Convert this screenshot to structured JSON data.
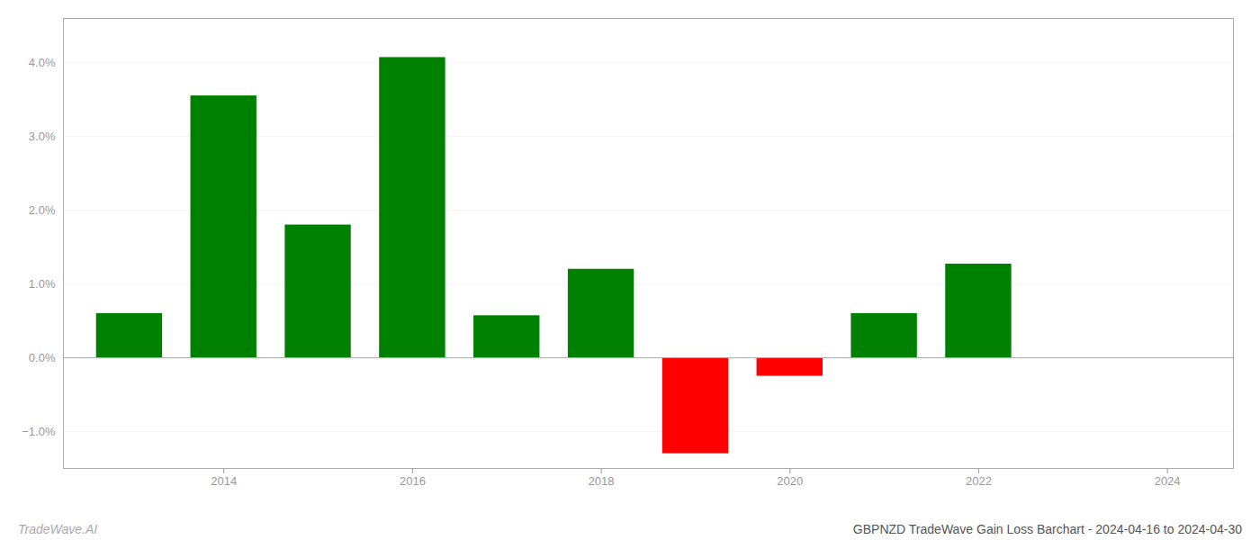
{
  "chart_data": {
    "type": "bar",
    "title": "GBPNZD TradeWave Gain Loss Barchart - 2024-04-16 to 2024-04-30",
    "annotations": [
      "TradeWave.AI"
    ],
    "x": [
      2013,
      2014,
      2015,
      2016,
      2017,
      2018,
      2019,
      2020,
      2021,
      2022
    ],
    "values": [
      0.006,
      0.0355,
      0.018,
      0.0407,
      0.0057,
      0.012,
      -0.013,
      -0.0025,
      0.006,
      0.0127
    ],
    "colors": [
      "#008000",
      "#008000",
      "#008000",
      "#008000",
      "#008000",
      "#008000",
      "#ff0000",
      "#ff0000",
      "#008000",
      "#008000"
    ],
    "xlim": [
      2012.3,
      2024.7
    ],
    "xticks": [
      2014,
      2016,
      2018,
      2020,
      2022,
      2024
    ],
    "ylim": [
      -0.015,
      0.046
    ],
    "yticks": [
      {
        "value": -0.01,
        "label": "−1.0%"
      },
      {
        "value": 0.0,
        "label": "0.0%"
      },
      {
        "value": 0.01,
        "label": "1.0%"
      },
      {
        "value": 0.02,
        "label": "2.0%"
      },
      {
        "value": 0.03,
        "label": "3.0%"
      },
      {
        "value": 0.04,
        "label": "4.0%"
      }
    ],
    "grid": true
  }
}
